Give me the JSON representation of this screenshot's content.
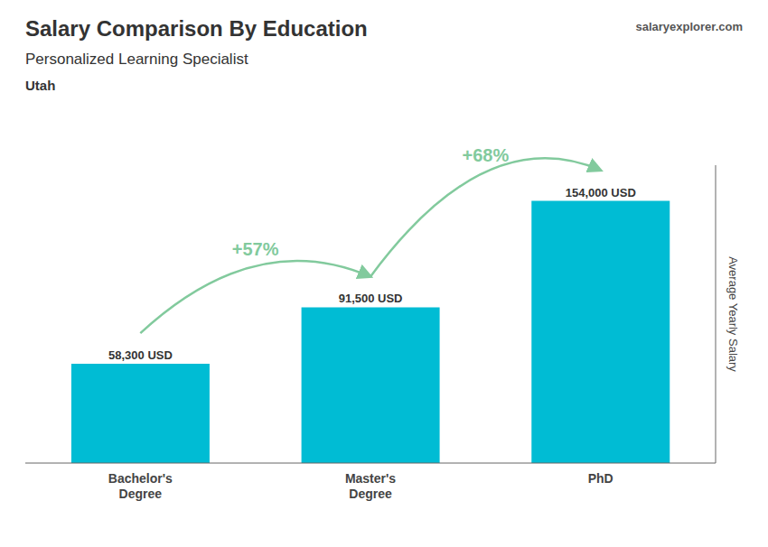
{
  "chart_data": {
    "type": "bar",
    "title": "Salary Comparison By Education",
    "subtitle": "Personalized Learning Specialist",
    "y_label": "Average Yearly Salary",
    "categories": [
      "Bachelor's\nDegree",
      "Master's\nDegree",
      "PhD"
    ],
    "values": [
      58300,
      91500,
      154000
    ],
    "value_labels": [
      "58,300 USD",
      "91,500 USD",
      "154,000 USD"
    ],
    "color": "#00bcd4",
    "ylim": [
      0,
      175000
    ],
    "tick_labels": "x",
    "data_labels": true,
    "annotations": [
      {
        "text": "Utah"
      },
      {
        "text": "salaryexplorer.com"
      },
      {
        "text": "+57%",
        "from": "Bachelor's\nDegree",
        "to": "Master's\nDegree"
      },
      {
        "text": "+68%",
        "from": "Master's\nDegree",
        "to": "PhD"
      }
    ]
  }
}
